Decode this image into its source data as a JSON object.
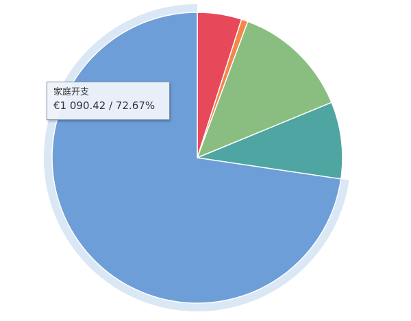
{
  "chart_data": {
    "type": "pie",
    "slices": [
      {
        "color": "#e8495a",
        "percent": 4.93
      },
      {
        "color": "#f3874a",
        "percent": 0.73
      },
      {
        "color": "#8abe80",
        "percent": 13.13
      },
      {
        "color": "#4fa5a1",
        "percent": 8.54
      },
      {
        "label": "家庭开支",
        "value": 1090.42,
        "percent": 72.67,
        "color": "#6d9ed8",
        "highlighted": true
      }
    ],
    "start_angle_deg": 0,
    "direction": "clockwise",
    "legend": "none",
    "tooltip": {
      "title": "家庭开支",
      "value_text": "€1 090.42  /  72.67%"
    }
  }
}
